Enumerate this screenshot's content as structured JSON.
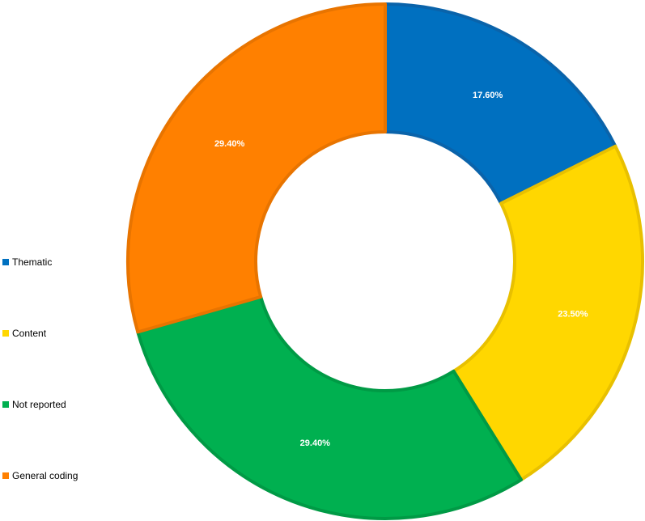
{
  "chart_data": {
    "type": "pie",
    "variant": "donut",
    "categories": [
      "Thematic",
      "Content",
      "Not reported",
      "General coding"
    ],
    "values": [
      17.6,
      23.5,
      29.4,
      29.4
    ],
    "value_labels": [
      "17.60%",
      "23.50%",
      "29.40%",
      "29.40%"
    ],
    "colors": [
      "#0070C0",
      "#FFD700",
      "#00B050",
      "#FF8000"
    ],
    "edge_colors": [
      "#0A63AA",
      "#E8C000",
      "#009A45",
      "#E87400"
    ],
    "legend_position": "left",
    "title": ""
  }
}
